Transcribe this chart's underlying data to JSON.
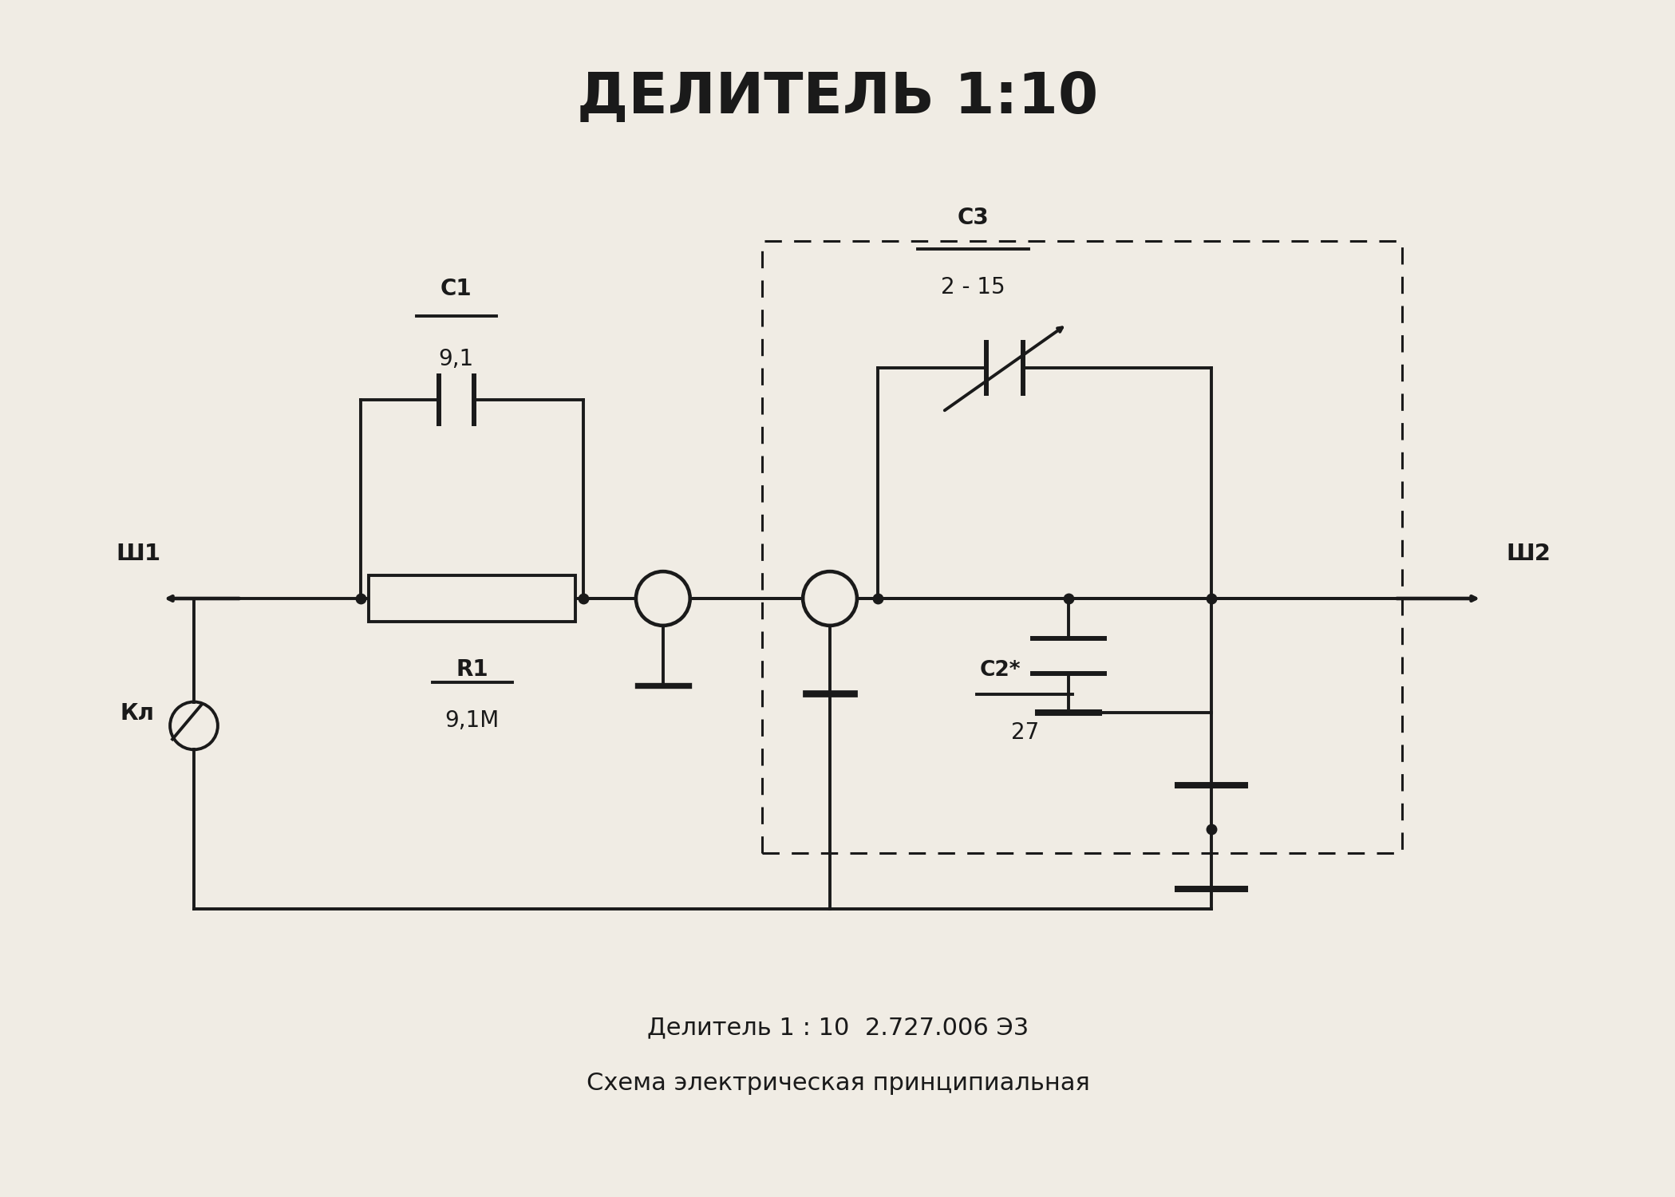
{
  "title": "ДЕЛИТЕЛЬ 1:10",
  "title_fontsize": 52,
  "title_fontweight": "bold",
  "subtitle1": "Делитель 1 : 10  2.727.006 Э3",
  "subtitle2": "Схема электрическая принципиальная",
  "subtitle_fontsize": 22,
  "bg_color": "#f0ece4",
  "line_color": "#1a1a1a",
  "line_width": 2.8,
  "fig_width": 20.99,
  "fig_height": 15.0
}
